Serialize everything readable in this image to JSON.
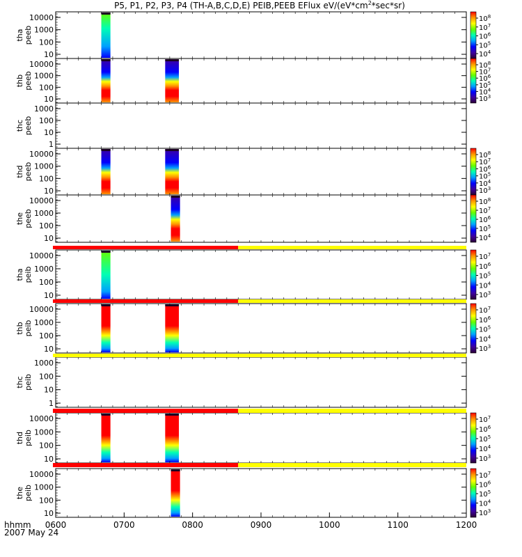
{
  "title": "P5, P1, P2, P3, P4 (TH-A,B,C,D,E) PEIB,PEEB EFlux eV/(eV*cm",
  "title_sup": "2",
  "title_tail": "*sec*sr)",
  "time_axis": {
    "ticks": [
      "0600",
      "0700",
      "0800",
      "0900",
      "1000",
      "1100",
      "1200"
    ],
    "label": "hhmm",
    "date": "2007 May 24"
  },
  "colors": {
    "flag_red": "#ff0000",
    "flag_yellow": "#ffff00",
    "colormap": [
      "#2b0033",
      "#3d00a0",
      "#0000ff",
      "#00a0ff",
      "#00ffb4",
      "#64ff00",
      "#ffff00",
      "#ff9600",
      "#ff0000"
    ]
  },
  "chart_data": {
    "type": "heatmap",
    "x_range_hhmm": [
      "0600",
      "1200"
    ],
    "flag_bar": {
      "red_until": "0840",
      "yellow_from": "0840",
      "appears_above": [
        "tha peib",
        "thb peib",
        "thd peib",
        "the peib"
      ],
      "all_yellow_above": [
        "thc peib"
      ]
    },
    "panels": [
      {
        "id": "tha-peeb",
        "probe": "tha",
        "product": "peeb",
        "yticks": [
          "10000",
          "1000",
          "100",
          "10"
        ],
        "cbar": [
          "10",
          "7",
          "10",
          "6",
          "10",
          "5",
          "10",
          "4"
        ],
        "cbar_exp": [
          8,
          7,
          6,
          5,
          4
        ],
        "bursts": [
          {
            "start": "0640",
            "end": "0648",
            "profile": "tha_e"
          }
        ]
      },
      {
        "id": "thb-peeb",
        "probe": "thb",
        "product": "peeb",
        "yticks": [
          "10000",
          "1000",
          "100",
          "10"
        ],
        "cbar_exp": [
          8,
          7,
          6,
          5,
          4,
          3
        ],
        "bursts": [
          {
            "start": "0640",
            "end": "0648",
            "profile": "e_hot"
          },
          {
            "start": "0736",
            "end": "0748",
            "profile": "e_hot"
          }
        ]
      },
      {
        "id": "thc-peeb",
        "probe": "thc",
        "product": "peeb",
        "yticks": [
          "1000",
          "100",
          "10",
          "1"
        ],
        "cbar_exp": [],
        "bursts": []
      },
      {
        "id": "thd-peeb",
        "probe": "thd",
        "product": "peeb",
        "yticks": [
          "10000",
          "1000",
          "100",
          "10"
        ],
        "cbar_exp": [
          8,
          7,
          6,
          5,
          4,
          3
        ],
        "bursts": [
          {
            "start": "0640",
            "end": "0648",
            "profile": "e_hot"
          },
          {
            "start": "0736",
            "end": "0748",
            "profile": "e_hot"
          }
        ]
      },
      {
        "id": "the-peeb",
        "probe": "the",
        "product": "peeb",
        "yticks": [
          "10000",
          "1000",
          "100",
          "10"
        ],
        "cbar_exp": [
          8,
          7,
          6,
          5,
          4
        ],
        "bursts": [
          {
            "start": "0741",
            "end": "0749",
            "profile": "e_hot"
          }
        ]
      },
      {
        "id": "tha-peib",
        "probe": "tha",
        "product": "peib",
        "yticks": [
          "10000",
          "1000",
          "100",
          "10"
        ],
        "cbar_exp": [
          7,
          6,
          5,
          4,
          3
        ],
        "bursts": [
          {
            "start": "0640",
            "end": "0648",
            "profile": "tha_i"
          }
        ]
      },
      {
        "id": "thb-peib",
        "probe": "thb",
        "product": "peib",
        "yticks": [
          "10000",
          "1000",
          "100",
          "10"
        ],
        "cbar_exp": [
          7,
          6,
          5,
          4,
          3
        ],
        "bursts": [
          {
            "start": "0640",
            "end": "0648",
            "profile": "i_hot"
          },
          {
            "start": "0736",
            "end": "0748",
            "profile": "i_hot"
          }
        ]
      },
      {
        "id": "thc-peib",
        "probe": "thc",
        "product": "peib",
        "yticks": [
          "1000",
          "100",
          "10",
          "1"
        ],
        "cbar_exp": [],
        "bursts": []
      },
      {
        "id": "thd-peib",
        "probe": "thd",
        "product": "peib",
        "yticks": [
          "10000",
          "1000",
          "100",
          "10"
        ],
        "cbar_exp": [
          7,
          6,
          5,
          4,
          3
        ],
        "bursts": [
          {
            "start": "0640",
            "end": "0648",
            "profile": "i_hot"
          },
          {
            "start": "0736",
            "end": "0748",
            "profile": "i_hot"
          }
        ]
      },
      {
        "id": "the-peib",
        "probe": "the",
        "product": "peib",
        "yticks": [
          "10000",
          "1000",
          "100",
          "10"
        ],
        "cbar_exp": [
          7,
          6,
          5,
          4,
          3
        ],
        "bursts": [
          {
            "start": "0741",
            "end": "0749",
            "profile": "i_hot"
          }
        ]
      }
    ]
  }
}
